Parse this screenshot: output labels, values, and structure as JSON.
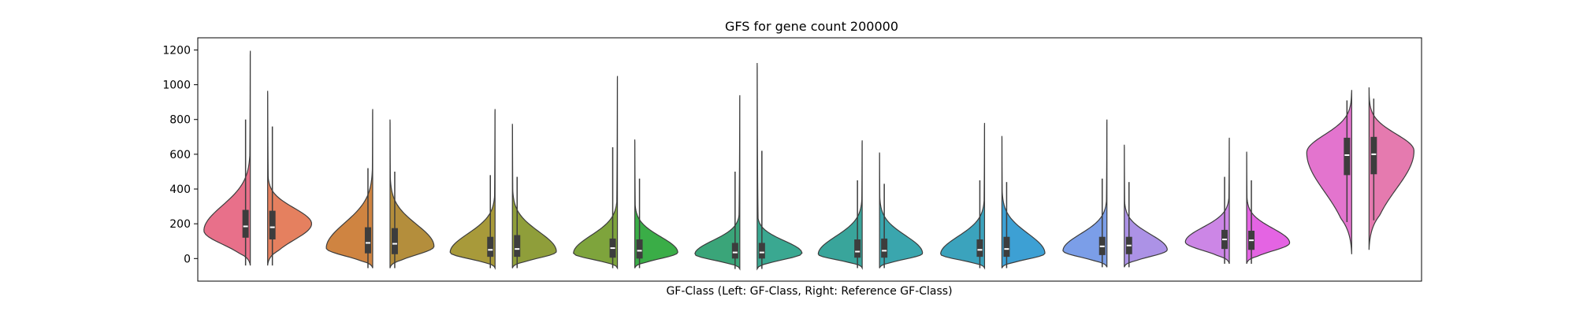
{
  "chart_data": {
    "type": "violin",
    "title": "GFS for gene count 200000",
    "xlabel": "GF-Class (Left: GF-Class, Right: Reference GF-Class)",
    "ylabel": "",
    "ylim": [
      -130,
      1270
    ],
    "yticks": [
      0,
      200,
      400,
      600,
      800,
      1000,
      1200
    ],
    "grid": false,
    "legend": "none",
    "split_labels": [
      "GF-Class",
      "Reference GF-Class"
    ],
    "groups": [
      {
        "colors": [
          "#e8708a",
          "#e5805f"
        ],
        "left": {
          "min": -40,
          "max": 1195,
          "mode": 160,
          "q1": 120,
          "median": 185,
          "q3": 280,
          "wmin": -40,
          "wmax": 800,
          "width": 0.95
        },
        "right": {
          "min": -40,
          "max": 965,
          "mode": 200,
          "q1": 110,
          "median": 180,
          "q3": 275,
          "wmin": -40,
          "wmax": 760,
          "width": 0.9
        }
      },
      {
        "colors": [
          "#cf8441",
          "#b48e3c"
        ],
        "left": {
          "min": -55,
          "max": 860,
          "mode": 60,
          "q1": 30,
          "median": 90,
          "q3": 180,
          "wmin": -55,
          "wmax": 520,
          "width": 0.95
        },
        "right": {
          "min": -55,
          "max": 800,
          "mode": 70,
          "q1": 25,
          "median": 85,
          "q3": 175,
          "wmin": -55,
          "wmax": 500,
          "width": 0.9
        }
      },
      {
        "colors": [
          "#a89a3a",
          "#8f9e3a"
        ],
        "left": {
          "min": -55,
          "max": 860,
          "mode": 35,
          "q1": 10,
          "median": 50,
          "q3": 125,
          "wmin": -55,
          "wmax": 480,
          "width": 0.92
        },
        "right": {
          "min": -55,
          "max": 775,
          "mode": 40,
          "q1": 10,
          "median": 55,
          "q3": 135,
          "wmin": -55,
          "wmax": 470,
          "width": 0.9
        }
      },
      {
        "colors": [
          "#7ea43c",
          "#3aad47"
        ],
        "left": {
          "min": -55,
          "max": 1050,
          "mode": 30,
          "q1": 5,
          "median": 60,
          "q3": 115,
          "wmin": -55,
          "wmax": 640,
          "width": 0.9
        },
        "right": {
          "min": -55,
          "max": 685,
          "mode": 35,
          "q1": 0,
          "median": 45,
          "q3": 110,
          "wmin": -55,
          "wmax": 460,
          "width": 0.88
        }
      },
      {
        "colors": [
          "#3aa579",
          "#3aa891"
        ],
        "left": {
          "min": -60,
          "max": 940,
          "mode": 25,
          "q1": 0,
          "median": 35,
          "q3": 90,
          "wmin": -60,
          "wmax": 500,
          "width": 0.92
        },
        "right": {
          "min": -60,
          "max": 1125,
          "mode": 30,
          "q1": 0,
          "median": 35,
          "q3": 90,
          "wmin": -60,
          "wmax": 620,
          "width": 0.92
        }
      },
      {
        "colors": [
          "#39a59b",
          "#3aa6ae"
        ],
        "left": {
          "min": -55,
          "max": 680,
          "mode": 25,
          "q1": 5,
          "median": 40,
          "q3": 110,
          "wmin": -55,
          "wmax": 450,
          "width": 0.9
        },
        "right": {
          "min": -55,
          "max": 610,
          "mode": 30,
          "q1": 5,
          "median": 45,
          "q3": 115,
          "wmin": -55,
          "wmax": 430,
          "width": 0.88
        }
      },
      {
        "colors": [
          "#3ba3bd",
          "#3da0d4"
        ],
        "left": {
          "min": -55,
          "max": 780,
          "mode": 25,
          "q1": 10,
          "median": 50,
          "q3": 110,
          "wmin": -55,
          "wmax": 450,
          "width": 0.9
        },
        "right": {
          "min": -55,
          "max": 705,
          "mode": 30,
          "q1": 10,
          "median": 55,
          "q3": 125,
          "wmin": -55,
          "wmax": 440,
          "width": 0.88
        }
      },
      {
        "colors": [
          "#7b9ee8",
          "#ac92e6"
        ],
        "left": {
          "min": -50,
          "max": 800,
          "mode": 45,
          "q1": 20,
          "median": 70,
          "q3": 125,
          "wmin": -50,
          "wmax": 460,
          "width": 0.9
        },
        "right": {
          "min": -50,
          "max": 655,
          "mode": 50,
          "q1": 25,
          "median": 75,
          "q3": 125,
          "wmin": -50,
          "wmax": 440,
          "width": 0.88
        }
      },
      {
        "colors": [
          "#cc86e6",
          "#e464e3"
        ],
        "left": {
          "min": -30,
          "max": 695,
          "mode": 95,
          "q1": 55,
          "median": 110,
          "q3": 165,
          "wmin": -30,
          "wmax": 470,
          "width": 0.9
        },
        "right": {
          "min": -30,
          "max": 615,
          "mode": 90,
          "q1": 50,
          "median": 105,
          "q3": 160,
          "wmin": -30,
          "wmax": 450,
          "width": 0.88
        }
      },
      {
        "colors": [
          "#e374ce",
          "#e57aaf"
        ],
        "left": {
          "min": 25,
          "max": 970,
          "mode": 610,
          "q1": 480,
          "median": 595,
          "q3": 695,
          "wmin": 210,
          "wmax": 910,
          "width": 0.92
        },
        "right": {
          "min": 50,
          "max": 985,
          "mode": 620,
          "q1": 485,
          "median": 600,
          "q3": 700,
          "wmin": 220,
          "wmax": 920,
          "width": 0.92
        }
      }
    ]
  }
}
